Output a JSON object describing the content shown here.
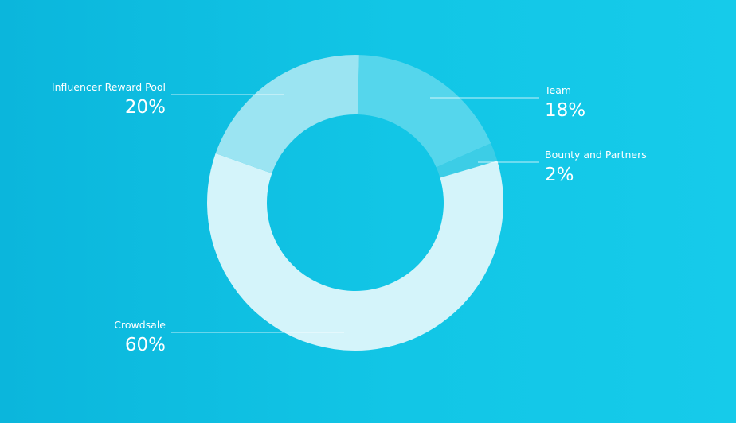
{
  "chart_data": {
    "type": "pie",
    "variant": "donut",
    "title": "",
    "legend": "none",
    "slices": [
      {
        "name": "Team",
        "label": "18%",
        "value": 18,
        "color": "#55d6ec"
      },
      {
        "name": "Bounty and Partners",
        "label": "2%",
        "value": 2,
        "color": "#3ccde6"
      },
      {
        "name": "Crowdsale",
        "label": "60%",
        "value": 60,
        "color": "#d4f4fa"
      },
      {
        "name": "Influencer Reward Pool",
        "label": "20%",
        "value": 20,
        "color": "#9be4f2"
      }
    ]
  },
  "colors": {
    "background_left": "#0bb6dc",
    "background_right": "#16cbea",
    "text": "#ffffff"
  }
}
